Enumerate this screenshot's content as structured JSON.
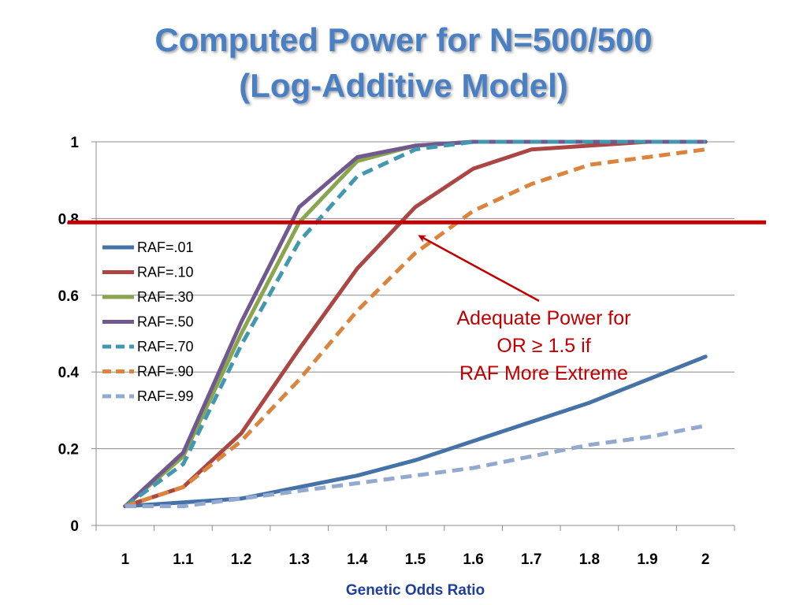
{
  "slide": {
    "title_line1": "Computed Power for N=500/500",
    "title_line2": "(Log-Additive Model)"
  },
  "chart_data": {
    "type": "line",
    "title": "",
    "xlabel": "Genetic Odds Ratio",
    "ylabel": "",
    "categories": [
      "1",
      "1.1",
      "1.2",
      "1.3",
      "1.4",
      "1.5",
      "1.6",
      "1.7",
      "1.8",
      "1.9",
      "2"
    ],
    "yticks": [
      "0",
      "0.2",
      "0.4",
      "0.6",
      "0.8",
      "1"
    ],
    "ylim": [
      0,
      1
    ],
    "grid": true,
    "legend_position": "left-middle",
    "series": [
      {
        "name": "RAF=.01",
        "color": "#4572a7",
        "dashed": false,
        "values": [
          0.05,
          0.06,
          0.07,
          0.1,
          0.13,
          0.17,
          0.22,
          0.27,
          0.32,
          0.38,
          0.44
        ]
      },
      {
        "name": "RAF=.10",
        "color": "#aa4643",
        "dashed": false,
        "values": [
          0.05,
          0.1,
          0.24,
          0.46,
          0.67,
          0.83,
          0.93,
          0.98,
          0.99,
          1.0,
          1.0
        ]
      },
      {
        "name": "RAF=.30",
        "color": "#89a54e",
        "dashed": false,
        "values": [
          0.05,
          0.18,
          0.5,
          0.79,
          0.95,
          0.99,
          1.0,
          1.0,
          1.0,
          1.0,
          1.0
        ]
      },
      {
        "name": "RAF=.50",
        "color": "#71588f",
        "dashed": false,
        "values": [
          0.05,
          0.19,
          0.53,
          0.83,
          0.96,
          0.99,
          1.0,
          1.0,
          1.0,
          1.0,
          1.0
        ]
      },
      {
        "name": "RAF=.70",
        "color": "#4198af",
        "dashed": true,
        "values": [
          0.05,
          0.16,
          0.47,
          0.74,
          0.91,
          0.98,
          1.0,
          1.0,
          1.0,
          1.0,
          1.0
        ]
      },
      {
        "name": "RAF=.90",
        "color": "#db843d",
        "dashed": true,
        "values": [
          0.05,
          0.1,
          0.22,
          0.38,
          0.56,
          0.71,
          0.82,
          0.89,
          0.94,
          0.96,
          0.98
        ]
      },
      {
        "name": "RAF=.99",
        "color": "#93a9cf",
        "dashed": true,
        "values": [
          0.05,
          0.05,
          0.07,
          0.09,
          0.11,
          0.13,
          0.15,
          0.18,
          0.21,
          0.23,
          0.26
        ]
      }
    ],
    "reference_line": {
      "value": 0.79,
      "color": "#c00000"
    },
    "annotation": {
      "lines": [
        "Adequate Power for",
        "OR ≥ 1.5 if",
        "RAF More Extreme"
      ],
      "color": "#c00000",
      "arrow_to": {
        "x": "1.5",
        "y": 0.76
      }
    }
  }
}
